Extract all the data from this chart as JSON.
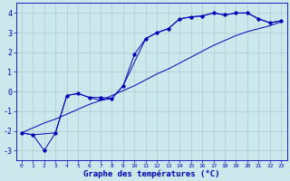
{
  "xlabel": "Graphe des températures (°C)",
  "bg_color": "#cce8ec",
  "grid_color": "#aaccd4",
  "line_color": "#0000bb",
  "x_data": [
    0,
    1,
    2,
    3,
    4,
    5,
    6,
    7,
    8,
    9,
    10,
    11,
    12,
    13,
    14,
    15,
    16,
    17,
    18,
    19,
    20,
    21,
    22,
    23
  ],
  "curve1": [
    -2.1,
    -2.2,
    -3.0,
    -2.1,
    -0.2,
    -0.1,
    -0.3,
    -0.3,
    -0.35,
    0.3,
    1.9,
    2.7,
    3.0,
    3.2,
    3.7,
    3.8,
    3.85,
    4.0,
    3.9,
    4.0,
    4.0,
    3.7,
    3.5,
    3.6
  ],
  "curve2": [
    -2.1,
    -2.2,
    -2.15,
    -2.1,
    -0.2,
    -0.1,
    -0.3,
    -0.45,
    -0.35,
    0.3,
    1.5,
    2.7,
    3.0,
    3.2,
    3.7,
    3.8,
    3.85,
    4.0,
    3.9,
    4.0,
    4.0,
    3.7,
    3.5,
    3.6
  ],
  "line_ref": [
    -2.1,
    -1.85,
    -1.6,
    -1.4,
    -1.15,
    -0.9,
    -0.65,
    -0.45,
    -0.2,
    0.05,
    0.3,
    0.6,
    0.9,
    1.15,
    1.45,
    1.75,
    2.05,
    2.35,
    2.6,
    2.85,
    3.05,
    3.2,
    3.35,
    3.55
  ],
  "ylim": [
    -3.5,
    4.5
  ],
  "xlim": [
    -0.5,
    23.5
  ],
  "yticks": [
    -3,
    -2,
    -1,
    0,
    1,
    2,
    3,
    4
  ],
  "xtick_fontsize": 4.5,
  "ytick_fontsize": 6.0,
  "xlabel_fontsize": 6.5,
  "marker_size": 1.8,
  "linewidth": 0.7
}
